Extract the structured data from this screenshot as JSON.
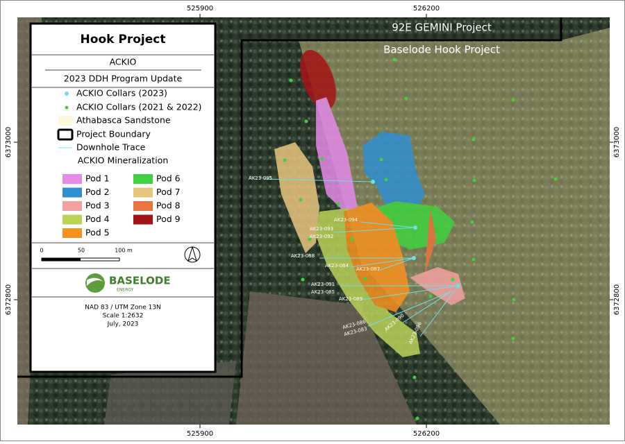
{
  "coords": {
    "top": [
      "525900",
      "526200"
    ],
    "bottom": [
      "525900",
      "526200"
    ],
    "left": [
      "6373000",
      "6372800"
    ],
    "right": [
      "6373000",
      "6372800"
    ]
  },
  "map_labels": {
    "gemini": "92E GEMINI Project",
    "hook": "Baselode Hook Project"
  },
  "drillholes": [
    "AK23-095",
    "AK23-094",
    "AK23-093",
    "AK23-092",
    "AK23-088",
    "AK23-084",
    "AK23-087",
    "AK23-091",
    "AK23-085",
    "AK23-089",
    "AK23-086",
    "AK23-083",
    "AK23-090",
    "AK23-096"
  ],
  "legend": {
    "title": "Hook Project",
    "subtitle": "ACKIO",
    "program": "2023 DDH Program Update",
    "items": [
      "ACKIO Collars (2023)",
      "ACKIO Collars (2021 & 2022)",
      "Athabasca Sandstone",
      "Project Boundary",
      "Downhole Trace"
    ],
    "mineralization": "ACKIO Mineralization",
    "pods": [
      {
        "name": "Pod 1",
        "color": "#e58ae8"
      },
      {
        "name": "Pod 2",
        "color": "#2f8fd0"
      },
      {
        "name": "Pod 3",
        "color": "#f4a0a0"
      },
      {
        "name": "Pod 4",
        "color": "#bcd35a"
      },
      {
        "name": "Pod 5",
        "color": "#f6921e"
      },
      {
        "name": "Pod 6",
        "color": "#3fd13f"
      },
      {
        "name": "Pod 7",
        "color": "#e8c57e"
      },
      {
        "name": "Pod 8",
        "color": "#e9743e"
      },
      {
        "name": "Pod 9",
        "color": "#a41414"
      }
    ],
    "scale": [
      "0",
      "50",
      "100 m"
    ],
    "logo": {
      "name": "BASELODE",
      "tagline": "ENERGY"
    },
    "footer": [
      "NAD 83 / UTM Zone 13N",
      "Scale 1:2632",
      "July, 2023"
    ]
  }
}
